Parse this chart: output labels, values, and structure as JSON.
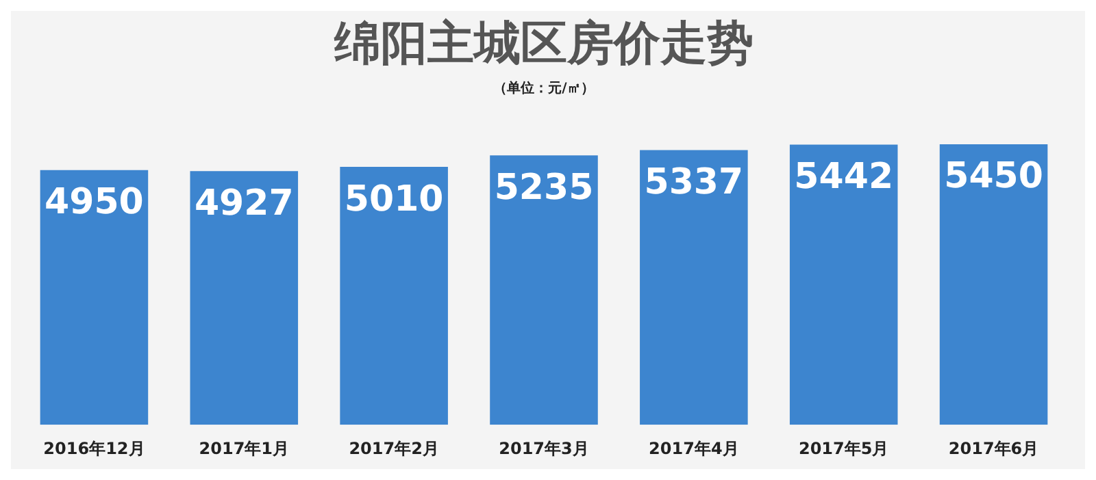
{
  "chart_data": {
    "type": "bar",
    "title": "绵阳主城区房价走势",
    "subtitle": "（单位：元/㎡）",
    "categories": [
      "2016年12月",
      "2017年1月",
      "2017年2月",
      "2017年3月",
      "2017年4月",
      "2017年5月",
      "2017年6月"
    ],
    "values": [
      4950,
      4927,
      5010,
      5235,
      5337,
      5442,
      5450
    ],
    "color": "#3d85cf",
    "tick_labels": "x",
    "grid": false,
    "legend": false,
    "data_labels": true
  }
}
